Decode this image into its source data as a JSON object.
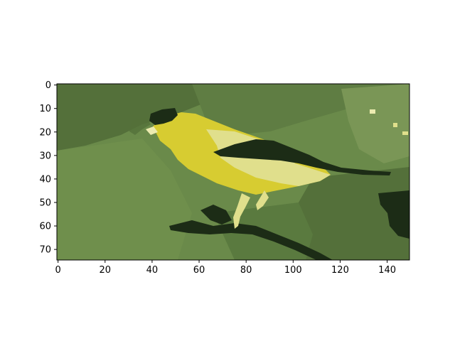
{
  "image": {
    "subject": "yellow bird on branch",
    "x_extent": [
      0,
      150
    ],
    "y_extent": [
      0,
      75
    ],
    "y_axis_inverted": true,
    "palette": {
      "background_dark_green": "#54703a",
      "background_mid_green": "#6a8a4a",
      "background_light_green": "#7a9656",
      "shadow_dark": "#1c2c16",
      "bird_yellow": "#d7cc31",
      "bird_pale": "#e0df8c",
      "highlight_cream": "#ecebb0"
    }
  },
  "axes": {
    "x_ticks": [
      "0",
      "20",
      "40",
      "60",
      "80",
      "100",
      "120",
      "140"
    ],
    "y_ticks": [
      "0",
      "10",
      "20",
      "30",
      "40",
      "50",
      "60",
      "70"
    ]
  }
}
